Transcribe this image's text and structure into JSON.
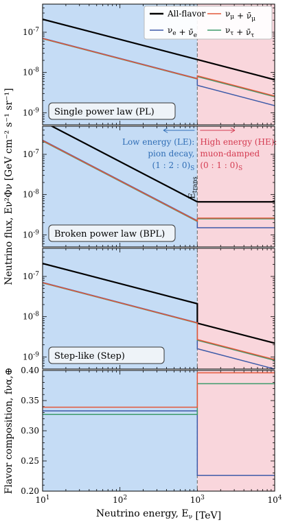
{
  "chart_data": {
    "type": "line",
    "x_axis": {
      "label": "Neutrino energy, E_ν [TeV]",
      "scale": "log",
      "lim": [
        10,
        10000
      ],
      "ticks": [
        10,
        100,
        1000,
        10000
      ],
      "tick_labels": [
        "10^1",
        "10^2",
        "10^3",
        "10^4"
      ]
    },
    "transition_energy": 1000,
    "transition_label": "E_trans",
    "regions": {
      "low_color": "#c5dcf5",
      "high_color": "#f9d6dc",
      "low_text": [
        "Low energy (LE):",
        "pion decay,",
        "(1 : 2 : 0)_S"
      ],
      "high_text": [
        "High energy (HE):",
        "muon-damped",
        "(0 : 1 : 0)_S"
      ],
      "low_text_color": "#2f6db5",
      "high_text_color": "#d43a50"
    },
    "ylabel_flux": "Neutrino flux, E_ν^2 Φ_ν [GeV cm^-2 s^-1 sr^-1]",
    "ylabel_flavor": "Flavor composition, f_να,⊕",
    "legend": {
      "position": "upper-right",
      "entries": [
        {
          "key": "all",
          "label": "All-flavor",
          "color": "#000000"
        },
        {
          "key": "mu",
          "label": "ν_μ + ν̄_μ",
          "color": "#e4573a"
        },
        {
          "key": "e",
          "label": "ν_e + ν̄_e",
          "color": "#3d5aa8"
        },
        {
          "key": "tau",
          "label": "ν_τ + ν̄_τ",
          "color": "#3d9a6a"
        }
      ]
    },
    "panels": [
      {
        "name": "Single power law (PL)",
        "yscale": "log",
        "ylim": [
          5e-10,
          5e-07
        ],
        "yticks": [
          1e-09,
          1e-08,
          1e-07
        ],
        "ytick_labels": [
          "10^-9",
          "10^-8",
          "10^-7"
        ],
        "series": [
          {
            "key": "all",
            "points": [
              [
                10,
                2.1e-07
              ],
              [
                1000,
                2.1e-08
              ],
              [
                1000,
                2.1e-08
              ],
              [
                10000,
                6.6e-09
              ]
            ]
          },
          {
            "key": "mu",
            "points": [
              [
                10,
                7e-08
              ],
              [
                1000,
                7e-09
              ],
              [
                1000,
                8.3e-09
              ],
              [
                10000,
                2.6e-09
              ]
            ]
          },
          {
            "key": "tau",
            "points": [
              [
                10,
                6.9e-08
              ],
              [
                1000,
                6.9e-09
              ],
              [
                1000,
                7.9e-09
              ],
              [
                10000,
                2.5e-09
              ]
            ]
          },
          {
            "key": "e",
            "points": [
              [
                10,
                7.1e-08
              ],
              [
                1000,
                7.1e-09
              ],
              [
                1000,
                4.8e-09
              ],
              [
                10000,
                1.5e-09
              ]
            ]
          }
        ]
      },
      {
        "name": "Broken power law (BPL)",
        "yscale": "log",
        "ylim": [
          5e-10,
          5e-07
        ],
        "yticks": [
          1e-09,
          1e-08,
          1e-07
        ],
        "ytick_labels": [
          "10^-9",
          "10^-8",
          "10^-7"
        ],
        "series": [
          {
            "key": "all",
            "points": [
              [
                10,
                6.6e-07
              ],
              [
                1000,
                6.6e-09
              ],
              [
                1000,
                6.6e-09
              ],
              [
                10000,
                6.6e-09
              ]
            ]
          },
          {
            "key": "mu",
            "points": [
              [
                10,
                2.2e-07
              ],
              [
                1000,
                2.2e-09
              ],
              [
                1000,
                2.6e-09
              ],
              [
                10000,
                2.6e-09
              ]
            ]
          },
          {
            "key": "tau",
            "points": [
              [
                10,
                2.15e-07
              ],
              [
                1000,
                2.15e-09
              ],
              [
                1000,
                2.5e-09
              ],
              [
                10000,
                2.5e-09
              ]
            ]
          },
          {
            "key": "e",
            "points": [
              [
                10,
                2.25e-07
              ],
              [
                1000,
                2.25e-09
              ],
              [
                1000,
                1.5e-09
              ],
              [
                10000,
                1.5e-09
              ]
            ]
          }
        ]
      },
      {
        "name": "Step-like (Step)",
        "yscale": "log",
        "ylim": [
          5e-10,
          5e-07
        ],
        "yticks": [
          1e-09,
          1e-08,
          1e-07
        ],
        "ytick_labels": [
          "10^-9",
          "10^-8",
          "10^-7"
        ],
        "series": [
          {
            "key": "all",
            "points": [
              [
                10,
                2.1e-07
              ],
              [
                1000,
                2.1e-08
              ],
              [
                1000,
                6.9e-09
              ],
              [
                10000,
                2.2e-09
              ]
            ]
          },
          {
            "key": "mu",
            "points": [
              [
                10,
                7e-08
              ],
              [
                1000,
                7e-09
              ],
              [
                1000,
                2.7e-09
              ],
              [
                10000,
                8.6e-10
              ]
            ]
          },
          {
            "key": "tau",
            "points": [
              [
                10,
                6.9e-08
              ],
              [
                1000,
                6.9e-09
              ],
              [
                1000,
                2.6e-09
              ],
              [
                10000,
                8.2e-10
              ]
            ]
          },
          {
            "key": "e",
            "points": [
              [
                10,
                7.1e-08
              ],
              [
                1000,
                7.1e-09
              ],
              [
                1000,
                1.6e-09
              ],
              [
                10000,
                5e-10
              ]
            ]
          }
        ]
      },
      {
        "name": "",
        "yscale": "linear",
        "ylim": [
          0.2,
          0.4
        ],
        "yticks": [
          0.2,
          0.25,
          0.3,
          0.35,
          0.4
        ],
        "ytick_labels": [
          "0.20",
          "0.25",
          "0.30",
          "0.35",
          "0.40"
        ],
        "series": [
          {
            "key": "mu",
            "points": [
              [
                10,
                0.339
              ],
              [
                1000,
                0.339
              ],
              [
                1000,
                0.396
              ],
              [
                10000,
                0.396
              ]
            ]
          },
          {
            "key": "e",
            "points": [
              [
                10,
                0.333
              ],
              [
                1000,
                0.333
              ],
              [
                1000,
                0.226
              ],
              [
                10000,
                0.226
              ]
            ]
          },
          {
            "key": "tau",
            "points": [
              [
                10,
                0.327
              ],
              [
                1000,
                0.327
              ],
              [
                1000,
                0.378
              ],
              [
                10000,
                0.378
              ]
            ]
          }
        ]
      }
    ]
  }
}
